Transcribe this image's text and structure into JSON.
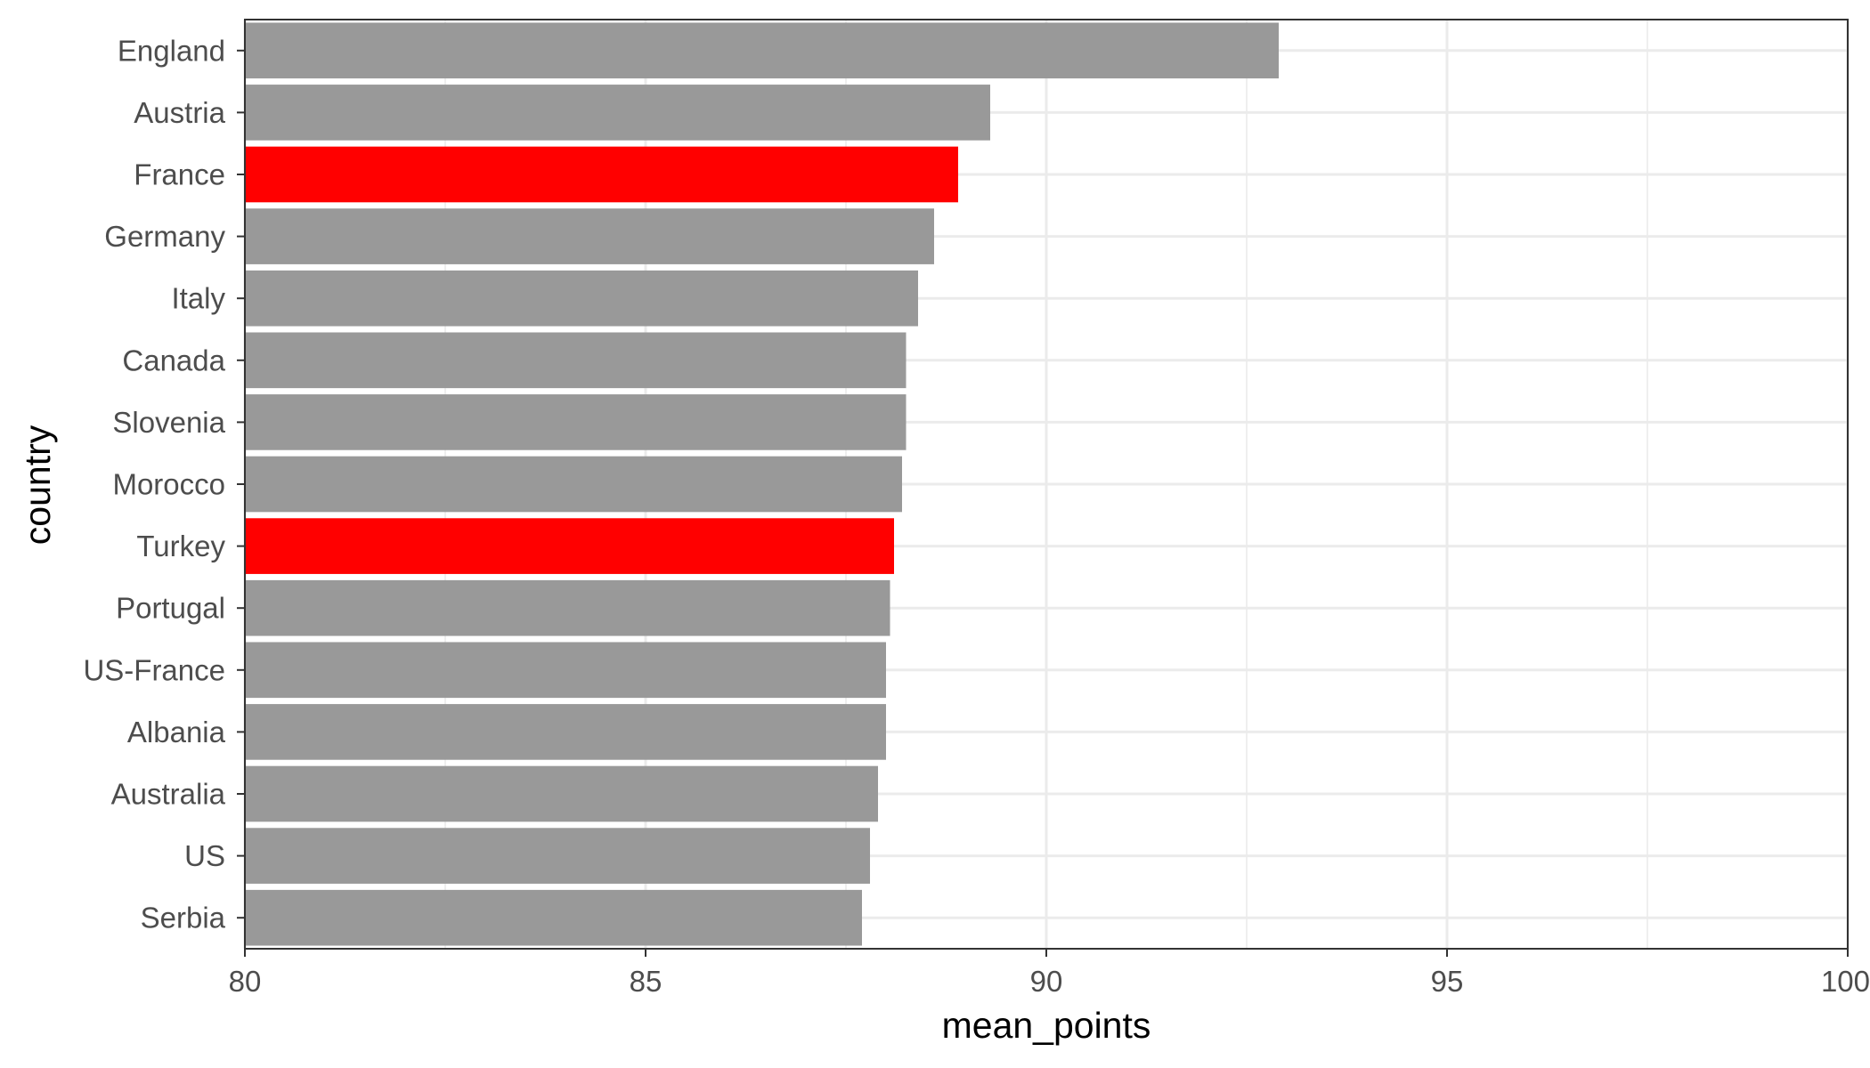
{
  "chart_data": {
    "type": "bar",
    "orientation": "horizontal",
    "title": "",
    "xlabel": "mean_points",
    "ylabel": "country",
    "xlim": [
      80,
      100
    ],
    "x_ticks": [
      "80",
      "85",
      "90",
      "95",
      "100"
    ],
    "grid": true,
    "legend": "none",
    "categories": [
      "England",
      "Austria",
      "France",
      "Germany",
      "Italy",
      "Canada",
      "Slovenia",
      "Morocco",
      "Turkey",
      "Portugal",
      "US-France",
      "Albania",
      "Australia",
      "US",
      "Serbia"
    ],
    "values": [
      92.9,
      89.3,
      88.9,
      88.6,
      88.4,
      88.25,
      88.25,
      88.2,
      88.1,
      88.05,
      88.0,
      88.0,
      87.9,
      87.8,
      87.7
    ],
    "highlighted": [
      "France",
      "Turkey"
    ],
    "colors": {
      "default_bar": "#999999",
      "highlight_bar": "#ff0000",
      "grid": "#ebebeb",
      "panel_border": "#333333",
      "tick_text": "#4d4d4d",
      "title_text": "#000000"
    }
  }
}
